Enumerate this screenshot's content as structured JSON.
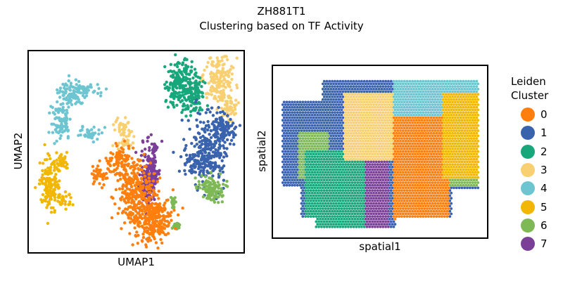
{
  "chart_data": [
    {
      "type": "scatter",
      "title": "ZH881T1",
      "subtitle": "Clustering based on TF Activity",
      "xlabel": "UMAP1",
      "ylabel": "UMAP2",
      "grid": false,
      "legend_placement": "right",
      "series": [
        {
          "name": "0",
          "color": "#ff7f0e",
          "region": "lower-center",
          "points": 650
        },
        {
          "name": "1",
          "color": "#3a63ad",
          "region": "right-middle",
          "points": 420
        },
        {
          "name": "2",
          "color": "#17a77b",
          "region": "upper-right",
          "points": 300
        },
        {
          "name": "3",
          "color": "#f8d072",
          "region": "upper-right and center",
          "points": 300
        },
        {
          "name": "4",
          "color": "#6cc5d0",
          "region": "upper-left arc",
          "points": 230
        },
        {
          "name": "5",
          "color": "#f2b705",
          "region": "left",
          "points": 200
        },
        {
          "name": "6",
          "color": "#7eb956",
          "region": "lower-right",
          "points": 150
        },
        {
          "name": "7",
          "color": "#7b3f98",
          "region": "center",
          "points": 200
        }
      ]
    },
    {
      "type": "scatter",
      "xlabel": "spatial1",
      "ylabel": "spatial2",
      "grid": false,
      "series_ref": "clusters 0-7 (same colors)"
    }
  ],
  "legend": {
    "title_line1": "Leiden",
    "title_line2": "Cluster",
    "items": [
      {
        "label": "0",
        "color": "#ff7f0e"
      },
      {
        "label": "1",
        "color": "#3a63ad"
      },
      {
        "label": "2",
        "color": "#17a77b"
      },
      {
        "label": "3",
        "color": "#f8d072"
      },
      {
        "label": "4",
        "color": "#6cc5d0"
      },
      {
        "label": "5",
        "color": "#f2b705"
      },
      {
        "label": "6",
        "color": "#7eb956"
      },
      {
        "label": "7",
        "color": "#7b3f98"
      }
    ]
  }
}
